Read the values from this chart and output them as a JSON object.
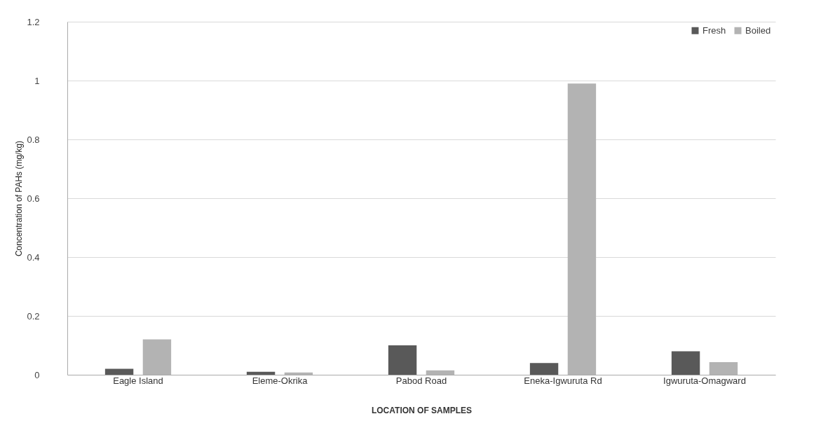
{
  "chart_data": {
    "type": "bar",
    "xlabel": "LOCATION OF SAMPLES",
    "ylabel": "Concentration of PAHs (mg/kg)",
    "categories": [
      "Eagle Island",
      "Eleme-Okrika",
      "Pabod Road",
      "Eneka-Igwuruta Rd",
      "Igwuruta-Omagward"
    ],
    "series": [
      {
        "name": "Fresh",
        "color": "#595959",
        "values": [
          0.02,
          0.01,
          0.1,
          0.04,
          0.08
        ]
      },
      {
        "name": "Boiled",
        "color": "#b3b3b3",
        "values": [
          0.12,
          0.008,
          0.015,
          0.99,
          0.043
        ]
      }
    ],
    "ylim": [
      0,
      1.2
    ],
    "yticks": [
      0,
      0.2,
      0.4,
      0.6,
      0.8,
      1,
      1.2
    ],
    "grid": "y",
    "legend": "top right"
  }
}
